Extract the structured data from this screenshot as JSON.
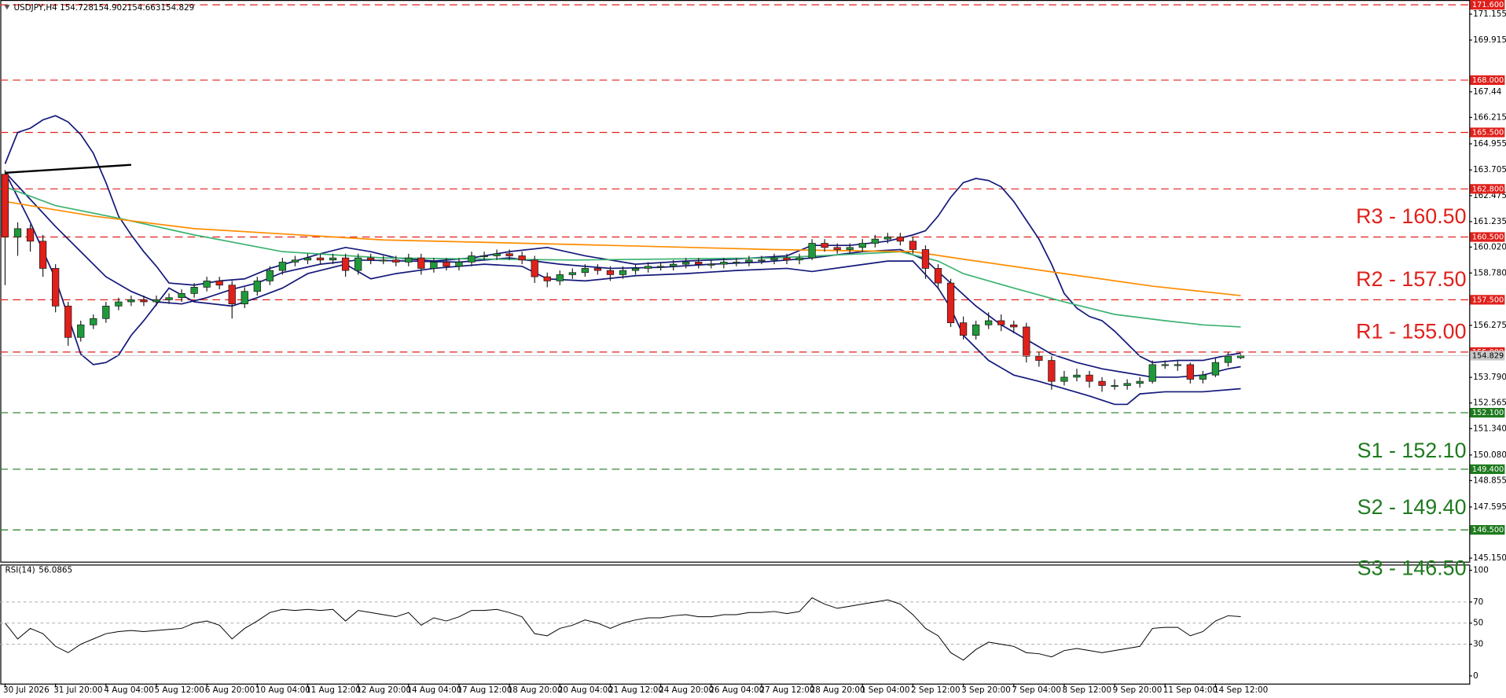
{
  "chart_data": {
    "type": "candlestick",
    "title": "USDJPY,H4",
    "up_color": "#1f9a3a",
    "down_color": "#e0201b",
    "grid": false,
    "categories": [
      "30 Jul 2026",
      null,
      null,
      null,
      "31 Jul 20:00",
      null,
      null,
      null,
      "4 Aug 04:00",
      null,
      null,
      null,
      "5 Aug 12:00",
      null,
      null,
      null,
      "6 Aug 20:00",
      null,
      null,
      null,
      "10 Aug 04:00",
      null,
      null,
      null,
      "11 Aug 12:00",
      null,
      null,
      null,
      "12 Aug 20:00",
      null,
      null,
      null,
      "14 Aug 04:00",
      null,
      null,
      null,
      "17 Aug 12:00",
      null,
      null,
      null,
      "18 Aug 20:00",
      null,
      null,
      null,
      "20 Aug 04:00",
      null,
      null,
      null,
      "21 Aug 12:00",
      null,
      null,
      null,
      "24 Aug 20:00",
      null,
      null,
      null,
      "26 Aug 04:00",
      null,
      null,
      null,
      "27 Aug 12:00",
      null,
      null,
      null,
      "28 Aug 20:00",
      null,
      null,
      null,
      "1 Sep 04:00",
      null,
      null,
      null,
      "2 Sep 12:00",
      null,
      null,
      null,
      "3 Sep 20:00",
      null,
      null,
      null,
      "7 Sep 04:00",
      null,
      null,
      null,
      "8 Sep 12:00",
      null,
      null,
      null,
      "9 Sep 20:00",
      null,
      null,
      null,
      "11 Sep 04:00",
      null,
      null,
      null,
      "14 Sep 12:00",
      null,
      null
    ],
    "ohlc": [
      [
        163.5,
        163.7,
        158.2,
        160.5
      ],
      [
        160.5,
        161.2,
        159.6,
        160.9
      ],
      [
        160.9,
        161.1,
        159.8,
        160.3
      ],
      [
        160.3,
        160.6,
        158.6,
        159.0
      ],
      [
        159.0,
        159.2,
        156.9,
        157.2
      ],
      [
        157.2,
        157.4,
        155.3,
        155.7
      ],
      [
        155.7,
        156.5,
        155.5,
        156.3
      ],
      [
        156.3,
        156.8,
        156.1,
        156.6
      ],
      [
        156.6,
        157.4,
        156.4,
        157.2
      ],
      [
        157.2,
        157.6,
        157.0,
        157.4
      ],
      [
        157.4,
        157.7,
        157.2,
        157.5
      ],
      [
        157.5,
        157.7,
        157.2,
        157.4
      ],
      [
        157.4,
        157.7,
        157.2,
        157.5
      ],
      [
        157.5,
        157.8,
        157.3,
        157.6
      ],
      [
        157.6,
        158.0,
        157.4,
        157.8
      ],
      [
        157.8,
        158.3,
        157.6,
        158.1
      ],
      [
        158.1,
        158.6,
        157.9,
        158.4
      ],
      [
        158.4,
        158.6,
        158.0,
        158.2
      ],
      [
        158.2,
        158.4,
        156.6,
        157.3
      ],
      [
        157.3,
        158.1,
        157.1,
        157.9
      ],
      [
        157.9,
        158.6,
        157.7,
        158.4
      ],
      [
        158.4,
        159.1,
        158.2,
        158.9
      ],
      [
        158.9,
        159.5,
        158.7,
        159.3
      ],
      [
        159.3,
        159.6,
        159.1,
        159.4
      ],
      [
        159.4,
        159.7,
        159.2,
        159.5
      ],
      [
        159.5,
        159.7,
        159.2,
        159.4
      ],
      [
        159.4,
        159.7,
        159.2,
        159.5
      ],
      [
        159.5,
        159.7,
        158.6,
        158.9
      ],
      [
        158.9,
        159.7,
        158.7,
        159.5
      ],
      [
        159.5,
        159.7,
        159.2,
        159.4
      ],
      [
        159.4,
        159.6,
        159.2,
        159.4
      ],
      [
        159.4,
        159.6,
        159.1,
        159.3
      ],
      [
        159.3,
        159.7,
        159.1,
        159.5
      ],
      [
        159.5,
        159.7,
        158.7,
        159.0
      ],
      [
        159.0,
        159.5,
        158.8,
        159.3
      ],
      [
        159.3,
        159.5,
        158.9,
        159.1
      ],
      [
        159.1,
        159.5,
        158.9,
        159.3
      ],
      [
        159.3,
        159.8,
        159.1,
        159.6
      ],
      [
        159.6,
        159.8,
        159.4,
        159.6
      ],
      [
        159.6,
        159.9,
        159.4,
        159.7
      ],
      [
        159.7,
        159.9,
        159.4,
        159.6
      ],
      [
        159.6,
        159.8,
        159.2,
        159.4
      ],
      [
        159.4,
        159.6,
        158.3,
        158.6
      ],
      [
        158.6,
        158.8,
        158.1,
        158.4
      ],
      [
        158.4,
        158.9,
        158.2,
        158.7
      ],
      [
        158.7,
        159.0,
        158.5,
        158.8
      ],
      [
        158.8,
        159.2,
        158.6,
        159.0
      ],
      [
        159.0,
        159.2,
        158.7,
        158.9
      ],
      [
        158.9,
        159.1,
        158.4,
        158.7
      ],
      [
        158.7,
        159.1,
        158.5,
        158.9
      ],
      [
        158.9,
        159.2,
        158.7,
        159.0
      ],
      [
        159.0,
        159.3,
        158.8,
        159.1
      ],
      [
        159.1,
        159.3,
        158.9,
        159.1
      ],
      [
        159.1,
        159.4,
        158.9,
        159.2
      ],
      [
        159.2,
        159.5,
        159.0,
        159.3
      ],
      [
        159.3,
        159.5,
        159.0,
        159.2
      ],
      [
        159.2,
        159.4,
        159.0,
        159.2
      ],
      [
        159.2,
        159.5,
        159.0,
        159.3
      ],
      [
        159.3,
        159.5,
        159.1,
        159.3
      ],
      [
        159.3,
        159.6,
        159.1,
        159.4
      ],
      [
        159.4,
        159.6,
        159.2,
        159.4
      ],
      [
        159.4,
        159.7,
        159.2,
        159.5
      ],
      [
        159.5,
        159.7,
        159.2,
        159.4
      ],
      [
        159.4,
        159.7,
        159.2,
        159.5
      ],
      [
        159.5,
        160.4,
        159.4,
        160.2
      ],
      [
        160.2,
        160.4,
        159.8,
        160.0
      ],
      [
        160.0,
        160.2,
        159.7,
        159.9
      ],
      [
        159.9,
        160.2,
        159.7,
        160.0
      ],
      [
        160.0,
        160.4,
        159.8,
        160.2
      ],
      [
        160.2,
        160.6,
        160.0,
        160.4
      ],
      [
        160.4,
        160.7,
        160.2,
        160.5
      ],
      [
        160.5,
        160.7,
        160.1,
        160.3
      ],
      [
        160.3,
        160.5,
        159.7,
        159.9
      ],
      [
        159.9,
        160.1,
        158.5,
        159.0
      ],
      [
        159.0,
        159.2,
        158.0,
        158.3
      ],
      [
        158.3,
        158.5,
        156.2,
        156.4
      ],
      [
        156.4,
        156.7,
        155.6,
        155.8
      ],
      [
        155.8,
        156.5,
        155.6,
        156.3
      ],
      [
        156.3,
        156.9,
        156.1,
        156.5
      ],
      [
        156.5,
        156.8,
        156.0,
        156.3
      ],
      [
        156.3,
        156.5,
        155.9,
        156.2
      ],
      [
        156.2,
        156.4,
        154.5,
        154.8
      ],
      [
        154.8,
        155.0,
        154.3,
        154.6
      ],
      [
        154.6,
        154.8,
        153.2,
        153.6
      ],
      [
        153.6,
        154.1,
        153.4,
        153.8
      ],
      [
        153.8,
        154.2,
        153.6,
        153.9
      ],
      [
        153.9,
        154.1,
        153.3,
        153.6
      ],
      [
        153.6,
        153.8,
        153.1,
        153.4
      ],
      [
        153.4,
        153.7,
        153.2,
        153.4
      ],
      [
        153.4,
        153.7,
        153.2,
        153.5
      ],
      [
        153.5,
        153.8,
        153.3,
        153.6
      ],
      [
        153.6,
        154.6,
        153.5,
        154.4
      ],
      [
        154.4,
        154.6,
        154.2,
        154.4
      ],
      [
        154.4,
        154.6,
        154.1,
        154.4
      ],
      [
        154.4,
        154.5,
        153.5,
        153.7
      ],
      [
        153.7,
        154.1,
        153.5,
        153.9
      ],
      [
        153.9,
        154.7,
        153.8,
        154.5
      ],
      [
        154.5,
        155.0,
        154.3,
        154.8
      ],
      [
        154.728,
        154.902,
        154.663,
        154.829
      ]
    ],
    "ylim": [
      144.98,
      171.83
    ],
    "yticks": [
      171.155,
      169.915,
      167.44,
      166.215,
      164.955,
      163.705,
      162.475,
      161.235,
      {
        "value": 160.02,
        "label": "160.020"
      },
      {
        "value": 158.78,
        "label": "158.780"
      },
      156.275,
      {
        "value": 153.79,
        "label": "153.790"
      },
      152.565,
      {
        "value": 151.34,
        "label": "151.340"
      },
      {
        "value": 150.08,
        "label": "150.080"
      },
      148.855,
      147.595,
      {
        "value": 145.15,
        "label": "145.150"
      }
    ],
    "levels": [
      {
        "value": 171.6,
        "label": "171.600",
        "color": "#e0201b"
      },
      {
        "value": 168.0,
        "label": "168.000",
        "color": "#e0201b"
      },
      {
        "value": 165.5,
        "label": "165.500",
        "color": "#e0201b"
      },
      {
        "value": 162.8,
        "label": "162.800",
        "color": "#e0201b"
      },
      {
        "value": 160.5,
        "label": "160.500",
        "color": "#e0201b",
        "annotation": "R3 - 160.50"
      },
      {
        "value": 157.5,
        "label": "157.500",
        "color": "#e0201b",
        "annotation": "R2 - 157.50"
      },
      {
        "value": 155.0,
        "label": "155.000",
        "color": "#e0201b",
        "annotation": "R1 - 155.00"
      },
      {
        "value": 152.1,
        "label": "152.100",
        "color": "#1e7a1e",
        "annotation": "S1 - 152.10"
      },
      {
        "value": 149.4,
        "label": "149.400",
        "color": "#1e7a1e",
        "annotation": "S2 - 149.40"
      },
      {
        "value": 146.5,
        "label": "146.500",
        "color": "#1e7a1e",
        "annotation": "S3 - 146.50"
      }
    ],
    "overlays": [
      {
        "color": "#14197a",
        "x": [
          0,
          1,
          2,
          3,
          4,
          5,
          6,
          7,
          8,
          9,
          10,
          11,
          12,
          13,
          15,
          17,
          19,
          21,
          23,
          25,
          27,
          29,
          31,
          34,
          37,
          40,
          43,
          46,
          50,
          54,
          58,
          62,
          64,
          67,
          70,
          72,
          73,
          74,
          75,
          76,
          77,
          78,
          79,
          80,
          81,
          82,
          83,
          84,
          85,
          86,
          87,
          88,
          89,
          90,
          91,
          93,
          95,
          97,
          98
        ],
        "values": [
          164.0,
          165.5,
          165.7,
          166.1,
          166.3,
          166.0,
          165.4,
          164.5,
          163.1,
          161.5,
          160.6,
          159.8,
          159.1,
          158.3,
          158.2,
          158.4,
          158.5,
          159.0,
          159.35,
          159.7,
          160.0,
          159.8,
          159.5,
          159.35,
          159.5,
          159.8,
          160.0,
          159.6,
          159.2,
          159.35,
          159.45,
          159.6,
          160.1,
          160.1,
          160.3,
          160.6,
          160.8,
          161.5,
          162.4,
          163.1,
          163.3,
          163.2,
          162.9,
          162.2,
          161.3,
          160.4,
          159.2,
          157.8,
          157.1,
          156.7,
          156.5,
          156.0,
          155.4,
          154.8,
          154.5,
          154.6,
          154.6,
          154.85,
          154.95
        ]
      },
      {
        "color": "#14197a",
        "x": [
          0,
          2,
          4,
          6,
          8,
          10,
          12,
          14,
          16,
          18,
          20,
          22,
          25,
          28,
          32,
          36,
          40,
          44,
          48,
          52,
          56,
          60,
          64,
          68,
          71,
          73,
          75,
          77,
          79,
          81,
          83,
          85,
          87,
          89,
          91,
          93,
          95,
          97,
          98
        ],
        "values": [
          163.6,
          162.3,
          161.0,
          159.8,
          158.6,
          157.9,
          157.4,
          157.3,
          157.6,
          158.0,
          158.3,
          158.8,
          159.2,
          159.4,
          159.35,
          159.3,
          159.5,
          159.2,
          159.0,
          159.05,
          159.2,
          159.3,
          159.5,
          159.8,
          159.9,
          159.4,
          158.3,
          157.2,
          156.3,
          155.6,
          154.9,
          154.5,
          154.2,
          154.0,
          153.8,
          153.8,
          153.9,
          154.2,
          154.3
        ]
      },
      {
        "color": "#14197a",
        "x": [
          0,
          2,
          4,
          5,
          6,
          7,
          8,
          9,
          10,
          11,
          13,
          15,
          18,
          20,
          22,
          24,
          27,
          29,
          31,
          34,
          38,
          41,
          43,
          46,
          50,
          54,
          58,
          62,
          64,
          67,
          70,
          72,
          74,
          75,
          76,
          78,
          80,
          82,
          84,
          86,
          88,
          89,
          90,
          92,
          95,
          98
        ],
        "values": [
          163.6,
          161.2,
          158.5,
          156.7,
          154.9,
          154.4,
          154.5,
          154.85,
          155.8,
          156.5,
          158.06,
          157.4,
          157.2,
          157.6,
          158.06,
          158.75,
          159.2,
          158.5,
          158.75,
          159.0,
          159.2,
          159.1,
          158.5,
          158.4,
          158.65,
          158.75,
          158.9,
          159.0,
          158.85,
          159.1,
          159.35,
          159.35,
          158.06,
          157.1,
          155.8,
          154.6,
          153.9,
          153.6,
          153.25,
          152.9,
          152.5,
          152.5,
          153.0,
          153.1,
          153.1,
          153.25
        ]
      },
      {
        "color": "#3cb371",
        "x": [
          0,
          4,
          9,
          15,
          22,
          30,
          45,
          61,
          68,
          71,
          74,
          76,
          80,
          84,
          88,
          92,
          95,
          98
        ],
        "values": [
          162.9,
          162.0,
          161.4,
          160.6,
          159.8,
          159.5,
          159.4,
          159.5,
          159.7,
          159.8,
          159.35,
          158.75,
          158.06,
          157.4,
          156.8,
          156.5,
          156.3,
          156.2
        ]
      },
      {
        "color": "#ff8c00",
        "x": [
          0,
          7,
          15,
          30,
          46,
          61,
          72,
          76,
          84,
          91,
          98
        ],
        "values": [
          162.2,
          161.5,
          160.9,
          160.36,
          160.13,
          159.9,
          159.8,
          159.44,
          158.75,
          158.15,
          157.7
        ]
      },
      {
        "color": "#000000",
        "x": [
          0,
          10
        ],
        "values": [
          163.57,
          163.95
        ]
      }
    ],
    "rsi": {
      "title": "RSI(14)",
      "color": "#000000",
      "ylim": [
        0,
        100
      ],
      "yticks": [
        0,
        30,
        50,
        70,
        100
      ],
      "values": [
        50,
        35,
        45,
        40,
        28,
        22,
        30,
        35,
        40,
        42,
        43,
        42,
        43,
        44,
        45,
        50,
        52,
        48,
        35,
        45,
        52,
        60,
        63,
        62,
        63,
        62,
        63,
        52,
        62,
        60,
        58,
        56,
        60,
        48,
        55,
        52,
        56,
        62,
        62,
        63,
        60,
        56,
        40,
        38,
        45,
        48,
        53,
        50,
        45,
        50,
        53,
        55,
        55,
        57,
        58,
        56,
        56,
        58,
        58,
        60,
        60,
        61,
        59,
        61,
        74,
        68,
        64,
        66,
        68,
        70,
        72,
        68,
        58,
        45,
        38,
        22,
        15,
        25,
        32,
        30,
        28,
        22,
        21,
        18,
        24,
        26,
        24,
        22,
        24,
        26,
        28,
        45,
        46,
        46,
        38,
        42,
        52,
        57,
        56.0865
      ]
    }
  }
}
